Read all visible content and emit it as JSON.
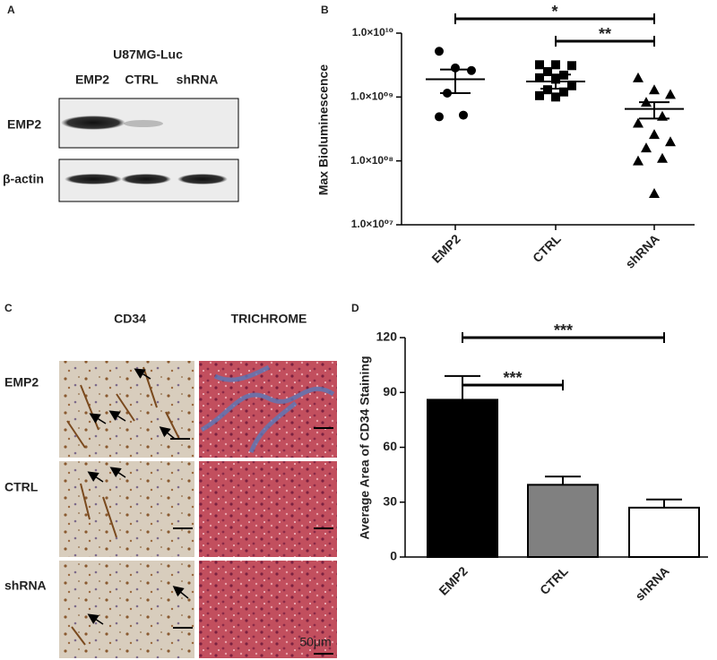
{
  "panel_labels": [
    "A",
    "B",
    "C",
    "D"
  ],
  "blot": {
    "cell_line": "U87MG-Luc",
    "lanes": [
      "EMP2",
      "CTRL",
      "shRNA"
    ],
    "rows": [
      "EMP2",
      "β-actin"
    ]
  },
  "histology": {
    "columns": [
      "CD34",
      "TRICHROME"
    ],
    "rows": [
      "EMP2",
      "CTRL",
      "shRNA"
    ],
    "scale_bar": "50μm"
  },
  "chart_data": [
    {
      "type": "scatter",
      "y_label": "Max Bioluminescence",
      "log_scale": true,
      "categories": [
        "EMP2",
        "CTRL",
        "shRNA"
      ],
      "series": [
        {
          "marker": "circle",
          "color": "#000000",
          "values": [
            5200000000,
            2850000000,
            2600000000,
            1150000000,
            520000000,
            490000000
          ]
        },
        {
          "marker": "square",
          "color": "#000000",
          "values": [
            3200000000,
            3200000000,
            3100000000,
            2500000000,
            2200000000,
            2000000000,
            1900000000,
            1500000000,
            1300000000,
            1200000000,
            1050000000,
            1000000000
          ]
        },
        {
          "marker": "triangle",
          "color": "#000000",
          "values": [
            2000000000,
            1300000000,
            1100000000,
            830000000,
            500000000,
            390000000,
            260000000,
            200000000,
            160000000,
            110000000,
            100000000,
            31000000
          ]
        }
      ],
      "means": [
        1900000000,
        1750000000,
        650000000
      ],
      "error_low": [
        1150000000,
        1350000000,
        460000000
      ],
      "error_high": [
        2700000000,
        2250000000,
        830000000
      ],
      "ylim": [
        10000000,
        10000000000
      ],
      "yticks": [
        {
          "value": 10000000,
          "label": "1.0×10⁰⁷"
        },
        {
          "value": 100000000,
          "label": "1.0×10⁰⁸"
        },
        {
          "value": 1000000000,
          "label": "1.0×10⁰⁹"
        },
        {
          "value": 10000000000,
          "label": "1.0×10¹⁰"
        }
      ],
      "annotations": [
        "*",
        "**"
      ]
    },
    {
      "type": "bar",
      "y_label": "Average Area of CD34 Staining",
      "categories": [
        "EMP2",
        "CTRL",
        "shRNA"
      ],
      "values": [
        86,
        39.5,
        27
      ],
      "errors": [
        13,
        4.5,
        4.5
      ],
      "colors": [
        "#000000",
        "#808080",
        "#ffffff"
      ],
      "ylim": [
        0,
        120
      ],
      "yticks": [
        0,
        30,
        60,
        90,
        120
      ],
      "annotations": [
        "***",
        "***"
      ]
    }
  ]
}
